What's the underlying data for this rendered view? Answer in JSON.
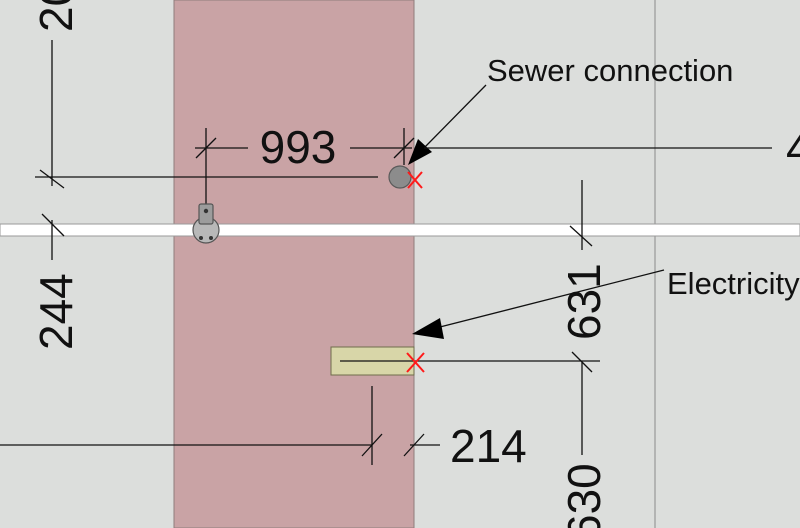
{
  "labels": {
    "sewer": "Sewer connection",
    "electricity": "Electricity"
  },
  "dimensions": {
    "d993": "993",
    "d214": "214",
    "d244": "244",
    "d631": "631",
    "d630": "630",
    "top_left_partial": "20",
    "right_edge_partial": "4"
  },
  "colors": {
    "background": "#dcdedc",
    "wall_band": "#c9a3a5",
    "wall_band_edge": "#8f7c7c",
    "electricity_box": "#d8d6a8",
    "marker": "#ff1a1a",
    "sewer_fill": "#8c8c8c"
  }
}
